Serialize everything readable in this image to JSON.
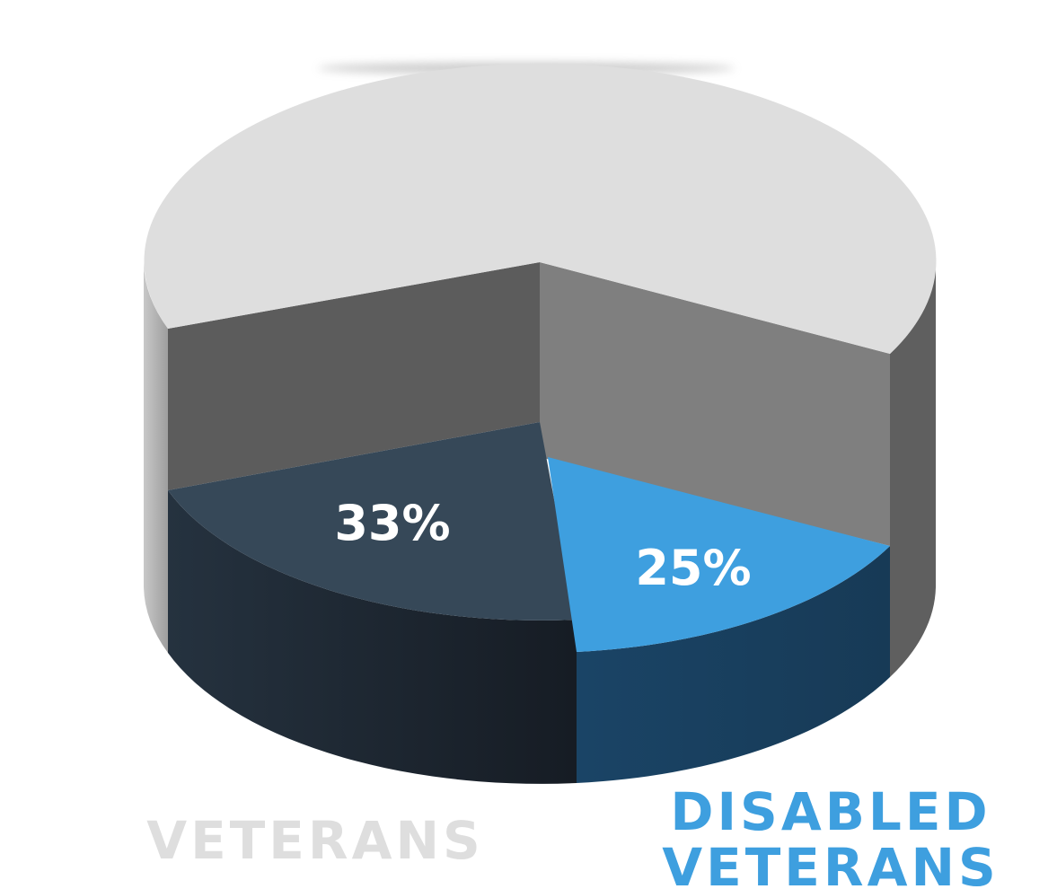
{
  "chart_data": {
    "type": "pie",
    "style": "3d-cylinder-exploded",
    "title": "",
    "slices": [
      {
        "label": "VETERANS",
        "value": 33,
        "value_label": "33%",
        "color": "#364858"
      },
      {
        "label": "DISABLED VETERANS",
        "value": 25,
        "value_label": "25%",
        "color": "#3E9FDF"
      },
      {
        "label": "",
        "value": 42,
        "value_label": "",
        "color": "#DEDEDE"
      }
    ],
    "legend": [
      {
        "text": "VETERANS",
        "color": "#DEDEDE"
      },
      {
        "text_line1": "DISABLED",
        "text_line2": "VETERANS",
        "color": "#3E9FDF"
      }
    ]
  }
}
